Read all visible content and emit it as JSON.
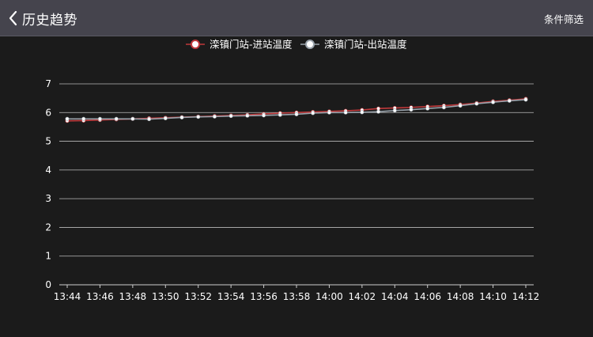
{
  "header": {
    "title": "历史趋势",
    "filter_label": "条件筛选",
    "back_icon": "chevron-left-icon"
  },
  "colors": {
    "background": "#1b1b1b",
    "header": "#45444d",
    "series_in": "#c0393b",
    "series_out": "#9ba4ad",
    "grid": "#bbbbbb",
    "text": "#ffffff"
  },
  "chart_data": {
    "type": "line",
    "title": "",
    "xlabel": "",
    "ylabel": "",
    "ylim": [
      0,
      7
    ],
    "yticks": [
      0,
      1,
      2,
      3,
      4,
      5,
      6,
      7
    ],
    "grid": true,
    "legend_position": "top-center",
    "x": [
      "13:44",
      "13:45",
      "13:46",
      "13:47",
      "13:48",
      "13:49",
      "13:50",
      "13:51",
      "13:52",
      "13:53",
      "13:54",
      "13:55",
      "13:56",
      "13:57",
      "13:58",
      "13:59",
      "14:00",
      "14:01",
      "14:02",
      "14:03",
      "14:04",
      "14:05",
      "14:06",
      "14:07",
      "14:08",
      "14:09",
      "14:10",
      "14:11",
      "14:12"
    ],
    "xticks": [
      "13:44",
      "13:46",
      "13:48",
      "13:50",
      "13:52",
      "13:54",
      "13:56",
      "13:58",
      "14:00",
      "14:02",
      "14:04",
      "14:06",
      "14:08",
      "14:10",
      "14:12"
    ],
    "series": [
      {
        "name": "滦镇门站-进站温度",
        "color": "#c0393b",
        "values": [
          5.71,
          5.72,
          5.74,
          5.76,
          5.78,
          5.8,
          5.82,
          5.84,
          5.86,
          5.88,
          5.9,
          5.92,
          5.95,
          5.98,
          6.0,
          6.02,
          6.04,
          6.06,
          6.09,
          6.14,
          6.16,
          6.18,
          6.21,
          6.24,
          6.28,
          6.33,
          6.39,
          6.43,
          6.48
        ]
      },
      {
        "name": "滦镇门站-出站温度",
        "color": "#9ba4ad",
        "values": [
          5.78,
          5.78,
          5.78,
          5.78,
          5.78,
          5.77,
          5.8,
          5.83,
          5.85,
          5.86,
          5.88,
          5.89,
          5.9,
          5.92,
          5.94,
          5.98,
          6.0,
          6.0,
          6.01,
          6.03,
          6.07,
          6.1,
          6.14,
          6.18,
          6.24,
          6.31,
          6.36,
          6.41,
          6.45
        ]
      }
    ]
  }
}
